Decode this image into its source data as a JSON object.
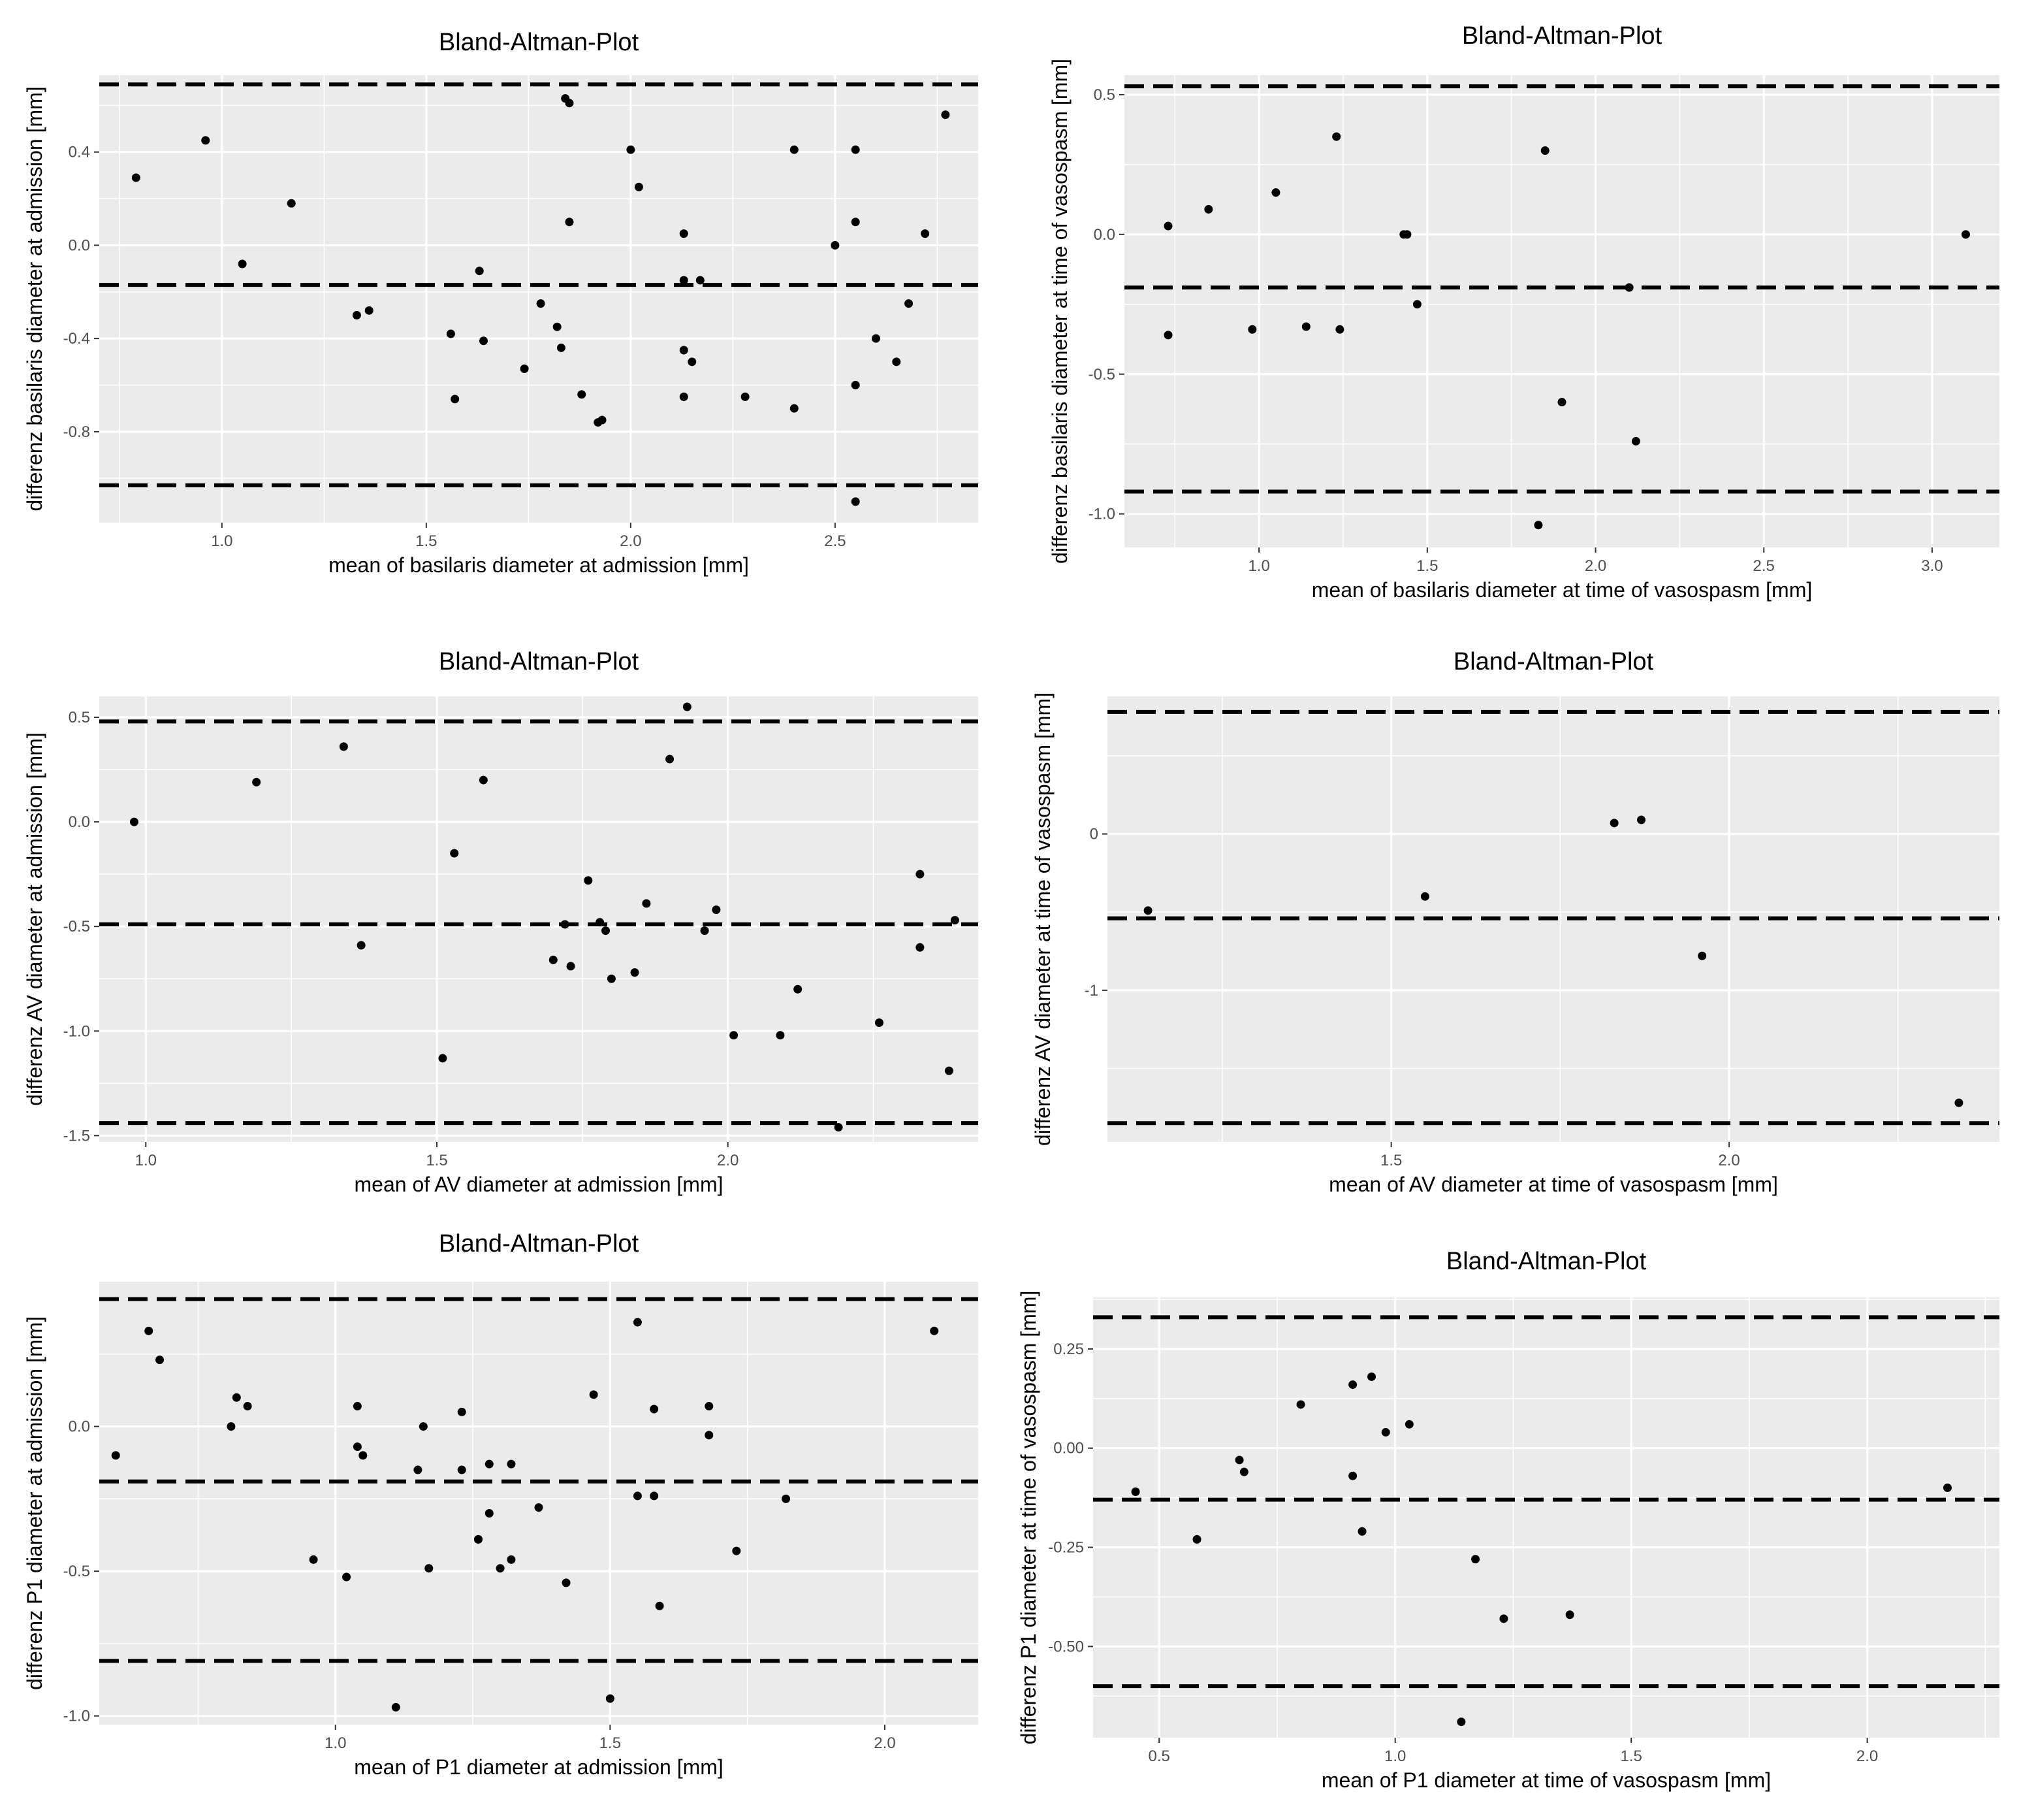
{
  "chart_data": [
    {
      "type": "scatter",
      "title": "Bland-Altman-Plot",
      "xlabel": "mean of basilaris diameter at admission [mm]",
      "ylabel": "differenz basilaris diameter at admission [mm]",
      "xlim": [
        0.7,
        2.85
      ],
      "ylim": [
        -1.19,
        0.73
      ],
      "xticks": [
        1.0,
        1.5,
        2.0,
        2.5
      ],
      "xtick_labels": [
        "1.0",
        "1.5",
        "2.0",
        "2.5"
      ],
      "yticks": [
        -0.8,
        -0.4,
        0.0,
        0.4
      ],
      "ytick_labels": [
        "-0.8",
        "-0.4",
        "0.0",
        "0.4"
      ],
      "grid": true,
      "reference_lines": [
        0.69,
        -0.17,
        -1.03
      ],
      "points": [
        [
          0.79,
          0.29
        ],
        [
          0.96,
          0.45
        ],
        [
          1.05,
          -0.08
        ],
        [
          1.17,
          0.18
        ],
        [
          1.33,
          -0.3
        ],
        [
          1.36,
          -0.28
        ],
        [
          1.56,
          -0.38
        ],
        [
          1.57,
          -0.66
        ],
        [
          1.63,
          -0.11
        ],
        [
          1.64,
          -0.41
        ],
        [
          1.74,
          -0.53
        ],
        [
          1.78,
          -0.25
        ],
        [
          1.82,
          -0.35
        ],
        [
          1.83,
          -0.44
        ],
        [
          1.84,
          0.63
        ],
        [
          1.85,
          0.61
        ],
        [
          1.85,
          0.1
        ],
        [
          1.88,
          -0.64
        ],
        [
          1.92,
          -0.76
        ],
        [
          1.93,
          -0.75
        ],
        [
          2.0,
          0.41
        ],
        [
          2.02,
          0.25
        ],
        [
          2.13,
          0.05
        ],
        [
          2.13,
          -0.15
        ],
        [
          2.13,
          -0.45
        ],
        [
          2.13,
          -0.65
        ],
        [
          2.15,
          -0.5
        ],
        [
          2.17,
          -0.15
        ],
        [
          2.28,
          -0.65
        ],
        [
          2.4,
          0.41
        ],
        [
          2.4,
          -0.7
        ],
        [
          2.5,
          0.0
        ],
        [
          2.55,
          0.41
        ],
        [
          2.55,
          0.1
        ],
        [
          2.55,
          -0.6
        ],
        [
          2.55,
          -1.1
        ],
        [
          2.6,
          -0.4
        ],
        [
          2.65,
          -0.5
        ],
        [
          2.68,
          -0.25
        ],
        [
          2.72,
          0.05
        ],
        [
          2.77,
          0.56
        ]
      ]
    },
    {
      "type": "scatter",
      "title": "Bland-Altman-Plot",
      "xlabel": "mean of basilaris diameter at time of vasospasm [mm]",
      "ylabel": "differenz basilaris diameter at time of vasospasm [mm]",
      "xlim": [
        0.6,
        3.2
      ],
      "ylim": [
        -1.12,
        0.57
      ],
      "xticks": [
        1.0,
        1.5,
        2.0,
        2.5,
        3.0
      ],
      "xtick_labels": [
        "1.0",
        "1.5",
        "2.0",
        "2.5",
        "3.0"
      ],
      "yticks": [
        -1.0,
        -0.5,
        0.0,
        0.5
      ],
      "ytick_labels": [
        "-1.0",
        "-0.5",
        "0.0",
        "0.5"
      ],
      "grid": true,
      "reference_lines": [
        0.53,
        -0.19,
        -0.92
      ],
      "points": [
        [
          0.73,
          0.03
        ],
        [
          0.73,
          -0.36
        ],
        [
          0.85,
          0.09
        ],
        [
          0.98,
          -0.34
        ],
        [
          1.05,
          0.15
        ],
        [
          1.14,
          -0.33
        ],
        [
          1.23,
          0.35
        ],
        [
          1.24,
          -0.34
        ],
        [
          1.43,
          0.0
        ],
        [
          1.44,
          0.0
        ],
        [
          1.47,
          -0.25
        ],
        [
          1.83,
          -1.04
        ],
        [
          1.85,
          0.3
        ],
        [
          1.9,
          -0.6
        ],
        [
          2.1,
          -0.19
        ],
        [
          2.12,
          -0.74
        ],
        [
          3.1,
          0.0
        ]
      ]
    },
    {
      "type": "scatter",
      "title": "Bland-Altman-Plot",
      "xlabel": "mean of AV diameter at admission [mm]",
      "ylabel": "differenz AV diameter at admission [mm]",
      "xlim": [
        0.92,
        2.43
      ],
      "ylim": [
        -1.53,
        0.6
      ],
      "xticks": [
        1.0,
        1.5,
        2.0
      ],
      "xtick_labels": [
        "1.0",
        "1.5",
        "2.0"
      ],
      "yticks": [
        -1.5,
        -1.0,
        -0.5,
        0.0,
        0.5
      ],
      "ytick_labels": [
        "-1.5",
        "-1.0",
        "-0.5",
        "0.0",
        "0.5"
      ],
      "grid": true,
      "reference_lines": [
        0.48,
        -0.49,
        -1.44
      ],
      "points": [
        [
          0.98,
          0.0
        ],
        [
          1.19,
          0.19
        ],
        [
          1.34,
          0.36
        ],
        [
          1.37,
          -0.59
        ],
        [
          1.51,
          -1.13
        ],
        [
          1.53,
          -0.15
        ],
        [
          1.58,
          0.2
        ],
        [
          1.7,
          -0.66
        ],
        [
          1.72,
          -0.49
        ],
        [
          1.73,
          -0.69
        ],
        [
          1.76,
          -0.28
        ],
        [
          1.78,
          -0.48
        ],
        [
          1.79,
          -0.52
        ],
        [
          1.8,
          -0.75
        ],
        [
          1.84,
          -0.72
        ],
        [
          1.86,
          -0.39
        ],
        [
          1.9,
          0.3
        ],
        [
          1.93,
          0.55
        ],
        [
          1.96,
          -0.52
        ],
        [
          1.98,
          -0.42
        ],
        [
          2.01,
          -1.02
        ],
        [
          2.09,
          -1.02
        ],
        [
          2.12,
          -0.8
        ],
        [
          2.19,
          -1.46
        ],
        [
          2.26,
          -0.96
        ],
        [
          2.33,
          -0.25
        ],
        [
          2.33,
          -0.6
        ],
        [
          2.38,
          -1.19
        ],
        [
          2.39,
          -0.47
        ]
      ]
    },
    {
      "type": "scatter",
      "title": "Bland-Altman-Plot",
      "xlabel": "mean of AV diameter at time of vasospasm [mm]",
      "ylabel": "differenz AV diameter at time of vasospasm [mm]",
      "xlim": [
        1.08,
        2.4
      ],
      "ylim": [
        -1.97,
        0.88
      ],
      "xticks": [
        1.5,
        2.0
      ],
      "xtick_labels": [
        "1.5",
        "2.0"
      ],
      "yticks": [
        -1,
        0
      ],
      "ytick_labels": [
        "-1",
        "0"
      ],
      "grid": true,
      "reference_lines": [
        0.78,
        -0.54,
        -1.85
      ],
      "points": [
        [
          1.14,
          -0.49
        ],
        [
          1.55,
          -0.4
        ],
        [
          1.83,
          0.07
        ],
        [
          1.87,
          0.09
        ],
        [
          1.96,
          -0.78
        ],
        [
          2.34,
          -1.72
        ]
      ]
    },
    {
      "type": "scatter",
      "title": "Bland-Altman-Plot",
      "xlabel": "mean of P1 diameter at admission [mm]",
      "ylabel": "differenz P1 diameter at admission [mm]",
      "xlim": [
        0.57,
        2.17
      ],
      "ylim": [
        -1.03,
        0.5
      ],
      "xticks": [
        1.0,
        1.5,
        2.0
      ],
      "xtick_labels": [
        "1.0",
        "1.5",
        "2.0"
      ],
      "yticks": [
        -1.0,
        -0.5,
        0.0
      ],
      "ytick_labels": [
        "-1.0",
        "-0.5",
        "0.0"
      ],
      "grid": true,
      "reference_lines": [
        0.44,
        -0.19,
        -0.81
      ],
      "points": [
        [
          0.6,
          -0.1
        ],
        [
          0.66,
          0.33
        ],
        [
          0.68,
          0.23
        ],
        [
          0.81,
          0.0
        ],
        [
          0.82,
          0.1
        ],
        [
          0.84,
          0.07
        ],
        [
          0.96,
          -0.46
        ],
        [
          1.02,
          -0.52
        ],
        [
          1.04,
          0.07
        ],
        [
          1.04,
          -0.07
        ],
        [
          1.05,
          -0.1
        ],
        [
          1.11,
          -0.97
        ],
        [
          1.15,
          -0.15
        ],
        [
          1.16,
          0.0
        ],
        [
          1.17,
          -0.49
        ],
        [
          1.23,
          0.05
        ],
        [
          1.23,
          -0.15
        ],
        [
          1.26,
          -0.39
        ],
        [
          1.26,
          -0.39
        ],
        [
          1.28,
          -0.13
        ],
        [
          1.28,
          -0.3
        ],
        [
          1.3,
          -0.49
        ],
        [
          1.32,
          -0.13
        ],
        [
          1.32,
          -0.46
        ],
        [
          1.42,
          -0.54
        ],
        [
          1.37,
          -0.28
        ],
        [
          1.47,
          0.11
        ],
        [
          1.55,
          0.36
        ],
        [
          1.55,
          -0.24
        ],
        [
          1.58,
          0.06
        ],
        [
          1.59,
          -0.62
        ],
        [
          1.5,
          -0.94
        ],
        [
          1.58,
          -0.24
        ],
        [
          1.68,
          0.07
        ],
        [
          1.68,
          -0.03
        ],
        [
          1.73,
          -0.43
        ],
        [
          1.82,
          -0.25
        ],
        [
          2.09,
          0.33
        ]
      ]
    },
    {
      "type": "scatter",
      "title": "Bland-Altman-Plot",
      "xlabel": "mean of P1 diameter at time of vasospasm [mm]",
      "ylabel": "differenz P1 diameter at time of vasospasm [mm]",
      "xlim": [
        0.36,
        2.28
      ],
      "ylim": [
        -0.73,
        0.38
      ],
      "xticks": [
        0.5,
        1.0,
        1.5,
        2.0
      ],
      "xtick_labels": [
        "0.5",
        "1.0",
        "1.5",
        "2.0"
      ],
      "yticks": [
        -0.5,
        -0.25,
        0.0,
        0.25
      ],
      "ytick_labels": [
        "-0.50",
        "-0.25",
        "0.00",
        "0.25"
      ],
      "grid": true,
      "reference_lines": [
        0.33,
        -0.13,
        -0.6
      ],
      "points": [
        [
          0.45,
          -0.11
        ],
        [
          0.58,
          -0.23
        ],
        [
          0.67,
          -0.03
        ],
        [
          0.68,
          -0.06
        ],
        [
          0.8,
          0.11
        ],
        [
          0.91,
          0.16
        ],
        [
          0.91,
          -0.07
        ],
        [
          0.93,
          -0.21
        ],
        [
          0.95,
          0.18
        ],
        [
          0.98,
          0.04
        ],
        [
          1.03,
          0.06
        ],
        [
          1.14,
          -0.69
        ],
        [
          1.17,
          -0.28
        ],
        [
          1.23,
          -0.43
        ],
        [
          1.37,
          -0.42
        ],
        [
          2.17,
          -0.1
        ]
      ]
    }
  ]
}
